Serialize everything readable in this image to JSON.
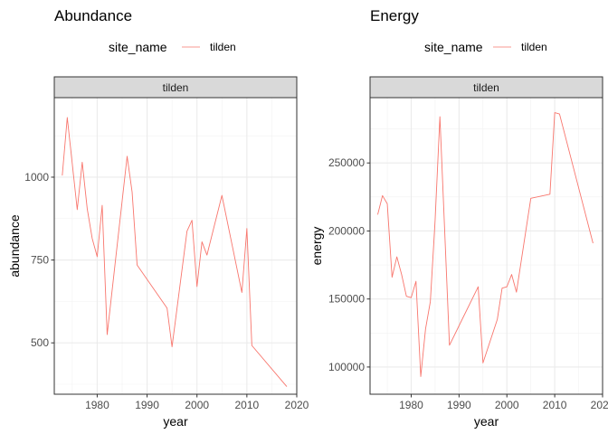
{
  "chart_data": [
    {
      "type": "line",
      "title": "Abundance",
      "legend": {
        "title": "site_name",
        "entries": [
          "tilden"
        ],
        "placement": "top"
      },
      "facet": "tilden",
      "xlabel": "year",
      "ylabel": "abundance",
      "xlim": [
        1971.4,
        2020
      ],
      "ylim": [
        345,
        1240
      ],
      "x_ticks": [
        1980,
        1990,
        2000,
        2010,
        2020
      ],
      "x_tick_labels": [
        "1980",
        "1990",
        "2000",
        "2010",
        "2020"
      ],
      "y_ticks": [
        500,
        750,
        1000
      ],
      "y_tick_labels": [
        "500",
        "750",
        "1000"
      ],
      "grid": true,
      "color": "#f8766d",
      "series": [
        {
          "name": "tilden",
          "x": [
            1973,
            1974,
            1976,
            1977,
            1978,
            1979,
            1980,
            1981,
            1982,
            1986,
            1987,
            1988,
            1994,
            1995,
            1998,
            1999,
            2000,
            2001,
            2002,
            2005,
            2009,
            2010,
            2011,
            2018
          ],
          "y": [
            1005,
            1180,
            902,
            1045,
            905,
            815,
            760,
            915,
            525,
            1063,
            955,
            735,
            605,
            488,
            837,
            870,
            670,
            805,
            765,
            945,
            652,
            845,
            492,
            368
          ]
        }
      ]
    },
    {
      "type": "line",
      "title": "Energy",
      "legend": {
        "title": "site_name",
        "entries": [
          "tilden"
        ],
        "placement": "top"
      },
      "facet": "tilden",
      "xlabel": "year",
      "ylabel": "energy",
      "xlim": [
        1971.4,
        2020
      ],
      "ylim": [
        80000,
        298000
      ],
      "x_ticks": [
        1980,
        1990,
        2000,
        2010,
        2020
      ],
      "x_tick_labels": [
        "1980",
        "1990",
        "2000",
        "2010",
        "2020"
      ],
      "y_ticks": [
        100000,
        150000,
        200000,
        250000
      ],
      "y_tick_labels": [
        "100000",
        "150000",
        "200000",
        "250000"
      ],
      "grid": true,
      "color": "#f8766d",
      "series": [
        {
          "name": "tilden",
          "x": [
            1973,
            1974,
            1975,
            1976,
            1977,
            1978,
            1979,
            1980,
            1981,
            1982,
            1983,
            1984,
            1985,
            1986,
            1988,
            1994,
            1995,
            1998,
            1999,
            2000,
            2001,
            2002,
            2005,
            2009,
            2010,
            2011,
            2018
          ],
          "y": [
            212000,
            226000,
            220000,
            166000,
            181000,
            168000,
            152000,
            151000,
            163000,
            93000,
            128000,
            148000,
            208000,
            284000,
            116000,
            159000,
            103000,
            135000,
            158000,
            159000,
            168000,
            155000,
            224000,
            227000,
            287000,
            286000,
            191000
          ]
        }
      ]
    }
  ]
}
